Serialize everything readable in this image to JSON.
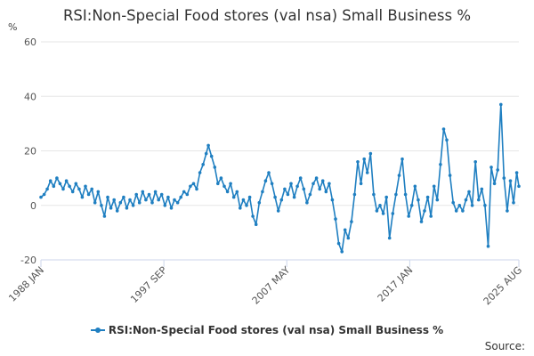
{
  "chart_data": {
    "type": "line",
    "title": "RSI:Non-Special Food stores (val nsa) Small Business %",
    "ylabel": "%",
    "ylim": [
      -20,
      60
    ],
    "yticks": [
      -20,
      0,
      20,
      40,
      60
    ],
    "xlim": [
      "1988 JAN",
      "2025 AUG"
    ],
    "xtick_labels": [
      "1988 JAN",
      "1997 SEP",
      "2007 MAY",
      "2017 JAN",
      "2025 AUG"
    ],
    "grid": "horizontal",
    "legend_position": "bottom",
    "series": [
      {
        "name": "RSI:Non-Special Food stores (val nsa) Small Business %",
        "color": "#1f7fc1",
        "points": [
          [
            "1988 JAN",
            3
          ],
          [
            "1988 APR",
            4
          ],
          [
            "1988 JUL",
            6
          ],
          [
            "1988 OCT",
            9
          ],
          [
            "1989 JAN",
            7
          ],
          [
            "1989 APR",
            10
          ],
          [
            "1989 JUL",
            8
          ],
          [
            "1989 OCT",
            6
          ],
          [
            "1990 JAN",
            9
          ],
          [
            "1990 APR",
            7
          ],
          [
            "1990 JUL",
            5
          ],
          [
            "1990 OCT",
            8
          ],
          [
            "1991 JAN",
            6
          ],
          [
            "1991 APR",
            3
          ],
          [
            "1991 JUL",
            7
          ],
          [
            "1991 OCT",
            4
          ],
          [
            "1992 JAN",
            6
          ],
          [
            "1992 APR",
            1
          ],
          [
            "1992 JUL",
            5
          ],
          [
            "1992 OCT",
            0
          ],
          [
            "1993 JAN",
            -4
          ],
          [
            "1993 APR",
            3
          ],
          [
            "1993 JUL",
            -1
          ],
          [
            "1993 OCT",
            2
          ],
          [
            "1994 JAN",
            -2
          ],
          [
            "1994 APR",
            1
          ],
          [
            "1994 JUL",
            3
          ],
          [
            "1994 OCT",
            -1
          ],
          [
            "1995 JAN",
            2
          ],
          [
            "1995 APR",
            0
          ],
          [
            "1995 JUL",
            4
          ],
          [
            "1995 OCT",
            1
          ],
          [
            "1996 JAN",
            5
          ],
          [
            "1996 APR",
            2
          ],
          [
            "1996 JUL",
            4
          ],
          [
            "1996 OCT",
            1
          ],
          [
            "1997 JAN",
            5
          ],
          [
            "1997 APR",
            2
          ],
          [
            "1997 JUL",
            4
          ],
          [
            "1997 OCT",
            0
          ],
          [
            "1998 JAN",
            3
          ],
          [
            "1998 APR",
            -1
          ],
          [
            "1998 JUL",
            2
          ],
          [
            "1998 OCT",
            1
          ],
          [
            "1999 JAN",
            3
          ],
          [
            "1999 APR",
            5
          ],
          [
            "1999 JUL",
            4
          ],
          [
            "1999 OCT",
            7
          ],
          [
            "2000 JAN",
            8
          ],
          [
            "2000 APR",
            6
          ],
          [
            "2000 JUL",
            12
          ],
          [
            "2000 OCT",
            15
          ],
          [
            "2001 JAN",
            19
          ],
          [
            "2001 MAR",
            22
          ],
          [
            "2001 JUN",
            18
          ],
          [
            "2001 SEP",
            14
          ],
          [
            "2001 DEC",
            8
          ],
          [
            "2002 MAR",
            10
          ],
          [
            "2002 JUN",
            7
          ],
          [
            "2002 SEP",
            5
          ],
          [
            "2002 DEC",
            8
          ],
          [
            "2003 MAR",
            3
          ],
          [
            "2003 JUN",
            5
          ],
          [
            "2003 SEP",
            -1
          ],
          [
            "2003 DEC",
            2
          ],
          [
            "2004 MAR",
            0
          ],
          [
            "2004 JUN",
            3
          ],
          [
            "2004 SEP",
            -4
          ],
          [
            "2004 DEC",
            -7
          ],
          [
            "2005 MAR",
            1
          ],
          [
            "2005 JUN",
            5
          ],
          [
            "2005 SEP",
            9
          ],
          [
            "2005 DEC",
            12
          ],
          [
            "2006 MAR",
            8
          ],
          [
            "2006 JUN",
            3
          ],
          [
            "2006 SEP",
            -2
          ],
          [
            "2006 DEC",
            2
          ],
          [
            "2007 MAR",
            6
          ],
          [
            "2007 JUN",
            4
          ],
          [
            "2007 SEP",
            8
          ],
          [
            "2007 DEC",
            3
          ],
          [
            "2008 MAR",
            7
          ],
          [
            "2008 JUN",
            10
          ],
          [
            "2008 SEP",
            6
          ],
          [
            "2008 DEC",
            1
          ],
          [
            "2009 MAR",
            4
          ],
          [
            "2009 JUN",
            8
          ],
          [
            "2009 SEP",
            10
          ],
          [
            "2009 DEC",
            6
          ],
          [
            "2010 MAR",
            9
          ],
          [
            "2010 JUN",
            5
          ],
          [
            "2010 SEP",
            8
          ],
          [
            "2010 DEC",
            2
          ],
          [
            "2011 MAR",
            -5
          ],
          [
            "2011 JUN",
            -14
          ],
          [
            "2011 SEP",
            -17
          ],
          [
            "2011 DEC",
            -9
          ],
          [
            "2012 MAR",
            -12
          ],
          [
            "2012 JUN",
            -6
          ],
          [
            "2012 SEP",
            4
          ],
          [
            "2012 DEC",
            16
          ],
          [
            "2013 MAR",
            8
          ],
          [
            "2013 JUN",
            17
          ],
          [
            "2013 SEP",
            12
          ],
          [
            "2013 DEC",
            19
          ],
          [
            "2014 MAR",
            4
          ],
          [
            "2014 JUN",
            -2
          ],
          [
            "2014 SEP",
            0
          ],
          [
            "2014 DEC",
            -3
          ],
          [
            "2015 MAR",
            3
          ],
          [
            "2015 JUN",
            -12
          ],
          [
            "2015 SEP",
            -3
          ],
          [
            "2015 DEC",
            4
          ],
          [
            "2016 MAR",
            11
          ],
          [
            "2016 JUN",
            17
          ],
          [
            "2016 SEP",
            4
          ],
          [
            "2016 DEC",
            -4
          ],
          [
            "2017 MAR",
            0
          ],
          [
            "2017 JUN",
            7
          ],
          [
            "2017 SEP",
            2
          ],
          [
            "2017 DEC",
            -6
          ],
          [
            "2018 MAR",
            -2
          ],
          [
            "2018 JUN",
            3
          ],
          [
            "2018 SEP",
            -4
          ],
          [
            "2018 DEC",
            7
          ],
          [
            "2019 MAR",
            2
          ],
          [
            "2019 JUN",
            15
          ],
          [
            "2019 SEP",
            28
          ],
          [
            "2019 DEC",
            24
          ],
          [
            "2020 MAR",
            11
          ],
          [
            "2020 JUN",
            1
          ],
          [
            "2020 SEP",
            -2
          ],
          [
            "2020 DEC",
            0
          ],
          [
            "2021 MAR",
            -2
          ],
          [
            "2021 JUN",
            2
          ],
          [
            "2021 SEP",
            5
          ],
          [
            "2021 DEC",
            0
          ],
          [
            "2022 MAR",
            16
          ],
          [
            "2022 JUN",
            2
          ],
          [
            "2022 SEP",
            6
          ],
          [
            "2022 DEC",
            0
          ],
          [
            "2023 MAR",
            -15
          ],
          [
            "2023 JUN",
            14
          ],
          [
            "2023 SEP",
            8
          ],
          [
            "2023 DEC",
            13
          ],
          [
            "2024 MAR",
            37
          ],
          [
            "2024 JUN",
            10
          ],
          [
            "2024 SEP",
            -2
          ],
          [
            "2024 DEC",
            9
          ],
          [
            "2025 MAR",
            1
          ],
          [
            "2025 JUN",
            12
          ],
          [
            "2025 AUG",
            7
          ]
        ]
      }
    ]
  },
  "source_label": "Source:"
}
